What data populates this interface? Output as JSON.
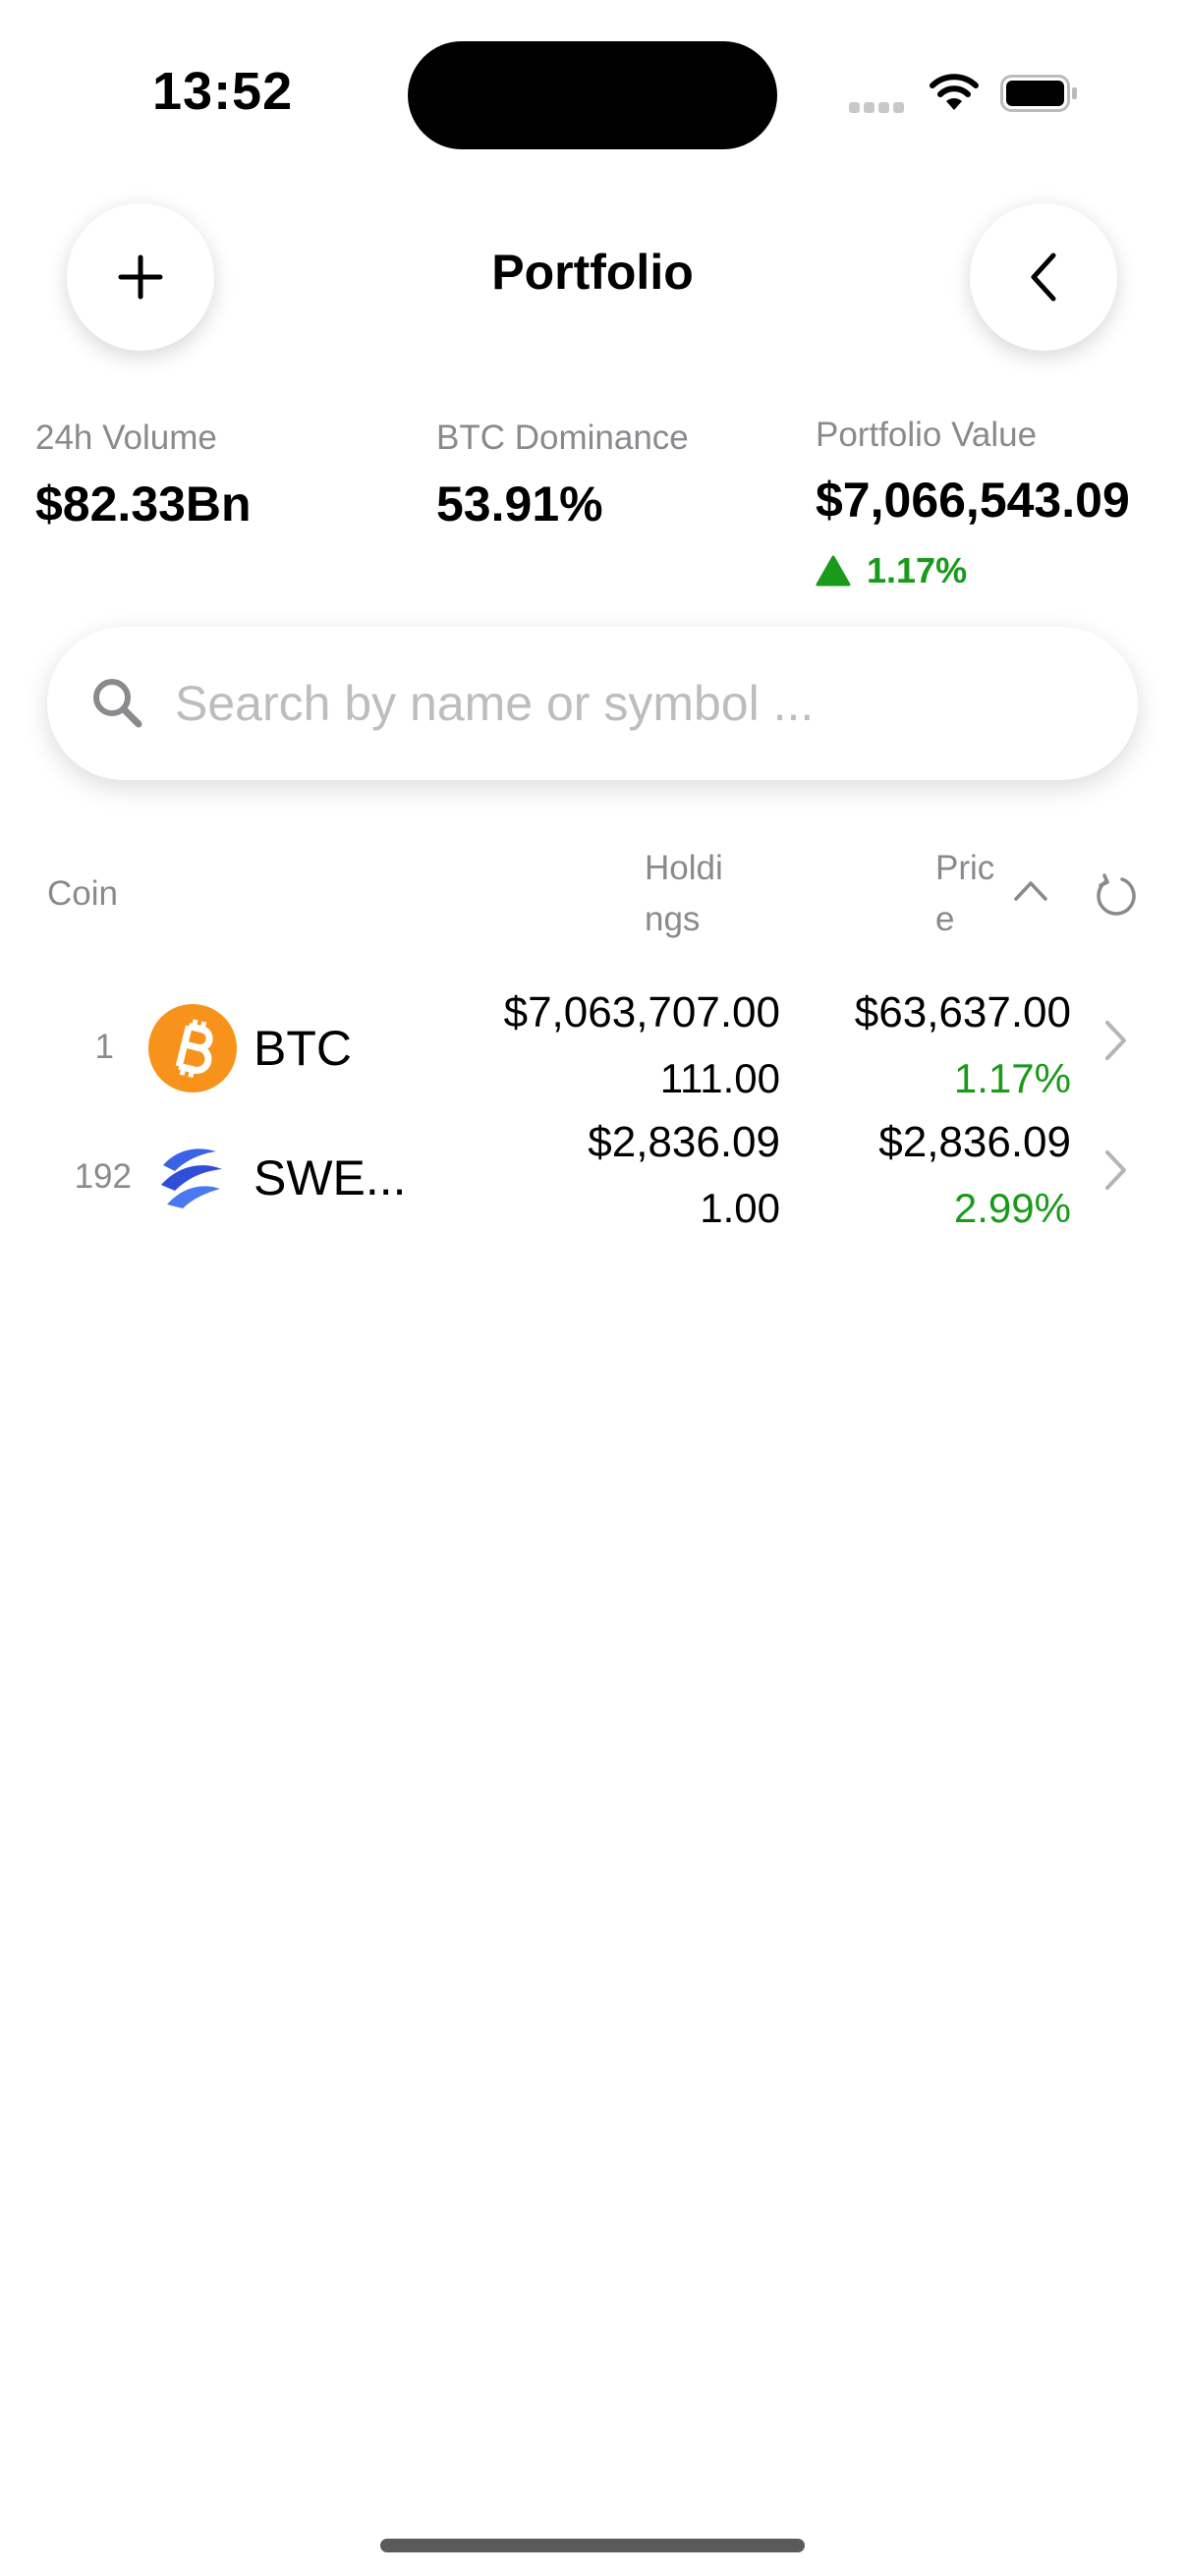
{
  "status_bar": {
    "time": "13:52"
  },
  "header": {
    "title": "Portfolio",
    "add_icon": "plus-icon",
    "back_icon": "chevron-left-icon"
  },
  "stats": {
    "volume": {
      "label": "24h Volume",
      "value": "$82.33Bn"
    },
    "dominance": {
      "label": "BTC Dominance",
      "value": "53.91%"
    },
    "portfolio": {
      "label": "Portfolio Value",
      "value": "$7,066,543.09",
      "change": "1.17%",
      "change_direction": "up"
    }
  },
  "search": {
    "placeholder": "Search by name or symbol ...",
    "value": ""
  },
  "table": {
    "headers": {
      "coin": "Coin",
      "holdings_line1": "Holdi",
      "holdings_line2": "ngs",
      "price_line1": "Pric",
      "price_line2": "e"
    },
    "rows": [
      {
        "rank": "1",
        "symbol": "BTC",
        "icon": "bitcoin-icon",
        "holdings_value": "$7,063,707.00",
        "holdings_qty": "111.00",
        "price": "$63,637.00",
        "change": "1.17%"
      },
      {
        "rank": "192",
        "symbol": "SWE...",
        "icon": "swell-icon",
        "holdings_value": "$2,836.09",
        "holdings_qty": "1.00",
        "price": "$2,836.09",
        "change": "2.99%"
      }
    ]
  },
  "colors": {
    "positive": "#1a9a1a",
    "bitcoin": "#F7931A",
    "swell": "#2e4fd6"
  }
}
